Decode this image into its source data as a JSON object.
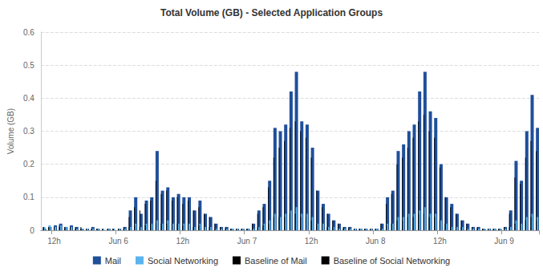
{
  "chart_data": {
    "type": "bar",
    "title": "Total Volume (GB) - Selected Application Groups",
    "y_label": "Volume (GB)",
    "categories": [
      null,
      null,
      "12h",
      null,
      null,
      null,
      null,
      null,
      null,
      null,
      null,
      null,
      null,
      null,
      "Jun 6",
      null,
      null,
      null,
      null,
      null,
      null,
      null,
      null,
      null,
      null,
      null,
      "12h",
      null,
      null,
      null,
      null,
      null,
      null,
      null,
      null,
      null,
      null,
      null,
      "Jun 7",
      null,
      null,
      null,
      null,
      null,
      null,
      null,
      null,
      null,
      null,
      null,
      "12h",
      null,
      null,
      null,
      null,
      null,
      null,
      null,
      null,
      null,
      null,
      null,
      "Jun 8",
      null,
      null,
      null,
      null,
      null,
      null,
      null,
      null,
      null,
      null,
      null,
      "12h",
      null,
      null,
      null,
      null,
      null,
      null,
      null,
      null,
      null,
      null,
      null,
      "Jun 9",
      null,
      null,
      null,
      null,
      null,
      null
    ],
    "series": [
      {
        "name": "Mail",
        "color": "#1f4f9a",
        "values": [
          0.005,
          0.01,
          0.015,
          0.02,
          0.01,
          0.015,
          0.01,
          0.005,
          0.005,
          0.01,
          0.005,
          0.0,
          0.005,
          0.0,
          0.005,
          0.01,
          0.06,
          0.1,
          0.05,
          0.09,
          0.1,
          0.24,
          0.12,
          0.13,
          0.1,
          0.11,
          0.1,
          0.1,
          0.06,
          0.09,
          0.05,
          0.04,
          0.02,
          0.01,
          0.01,
          0.005,
          0.005,
          0.005,
          0.005,
          0.02,
          0.06,
          0.08,
          0.15,
          0.31,
          0.3,
          0.32,
          0.42,
          0.48,
          0.33,
          0.32,
          0.25,
          0.12,
          0.08,
          0.05,
          0.03,
          0.02,
          0.01,
          0.01,
          0.005,
          0.005,
          0.005,
          0.005,
          0.005,
          0.02,
          0.1,
          0.12,
          0.24,
          0.26,
          0.3,
          0.32,
          0.42,
          0.48,
          0.36,
          0.34,
          0.2,
          0.1,
          0.08,
          0.05,
          0.03,
          0.02,
          0.01,
          0.01,
          0.005,
          0.005,
          0.005,
          0.005,
          0.01,
          0.06,
          0.21,
          0.15,
          0.3,
          0.41,
          0.31
        ]
      },
      {
        "name": "Social Networking",
        "color": "#5ab4ee",
        "values": [
          0.01,
          0.015,
          0.01,
          0.015,
          0.01,
          0.01,
          0.005,
          0.005,
          0.005,
          0.005,
          0.005,
          0.005,
          0.005,
          0.005,
          0.005,
          0.005,
          0.01,
          0.02,
          0.01,
          0.02,
          0.02,
          0.03,
          0.02,
          0.03,
          0.02,
          0.02,
          0.02,
          0.02,
          0.01,
          0.02,
          0.01,
          0.01,
          0.005,
          0.005,
          0.005,
          0.005,
          0.005,
          0.005,
          0.005,
          0.005,
          0.01,
          0.02,
          0.03,
          0.05,
          0.04,
          0.05,
          0.06,
          0.07,
          0.05,
          0.05,
          0.04,
          0.02,
          0.02,
          0.01,
          0.01,
          0.005,
          0.005,
          0.005,
          0.005,
          0.005,
          0.005,
          0.005,
          0.005,
          0.005,
          0.02,
          0.02,
          0.04,
          0.04,
          0.05,
          0.05,
          0.06,
          0.07,
          0.05,
          0.05,
          0.03,
          0.02,
          0.01,
          0.01,
          0.01,
          0.005,
          0.005,
          0.005,
          0.005,
          0.005,
          0.005,
          0.005,
          0.005,
          0.01,
          0.03,
          0.02,
          0.04,
          0.05,
          0.04
        ]
      },
      {
        "name": "Baseline of Mail",
        "color": "#000000",
        "values": [
          0.01,
          0.01,
          0.01,
          0.015,
          0.01,
          0.01,
          0.01,
          0.01,
          0.005,
          0.005,
          0.005,
          0.005,
          0.005,
          0.005,
          0.005,
          0.01,
          0.04,
          0.07,
          0.06,
          0.08,
          0.09,
          0.15,
          0.11,
          0.12,
          0.09,
          0.1,
          0.08,
          0.09,
          0.06,
          0.07,
          0.05,
          0.04,
          0.02,
          0.01,
          0.01,
          0.005,
          0.005,
          0.005,
          0.005,
          0.02,
          0.05,
          0.07,
          0.13,
          0.22,
          0.25,
          0.27,
          0.31,
          0.33,
          0.3,
          0.28,
          0.22,
          0.12,
          0.07,
          0.05,
          0.03,
          0.02,
          0.01,
          0.01,
          0.005,
          0.005,
          0.005,
          0.005,
          0.005,
          0.02,
          0.08,
          0.11,
          0.2,
          0.22,
          0.25,
          0.28,
          0.33,
          0.35,
          0.3,
          0.28,
          0.19,
          0.1,
          0.07,
          0.05,
          0.03,
          0.02,
          0.01,
          0.01,
          0.005,
          0.005,
          0.005,
          0.005,
          0.01,
          0.05,
          0.16,
          0.14,
          0.22,
          0.27,
          0.24
        ]
      },
      {
        "name": "Baseline of Social Networking",
        "color": "#000000",
        "values": [
          0.01,
          0.01,
          0.01,
          0.01,
          0.01,
          0.01,
          0.005,
          0.005,
          0.005,
          0.005,
          0.005,
          0.005,
          0.005,
          0.005,
          0.005,
          0.005,
          0.01,
          0.015,
          0.01,
          0.015,
          0.02,
          0.02,
          0.02,
          0.02,
          0.02,
          0.02,
          0.015,
          0.015,
          0.01,
          0.015,
          0.01,
          0.01,
          0.005,
          0.005,
          0.005,
          0.005,
          0.005,
          0.005,
          0.005,
          0.005,
          0.01,
          0.015,
          0.02,
          0.04,
          0.04,
          0.04,
          0.05,
          0.05,
          0.04,
          0.04,
          0.03,
          0.02,
          0.015,
          0.01,
          0.01,
          0.005,
          0.005,
          0.005,
          0.005,
          0.005,
          0.005,
          0.005,
          0.005,
          0.005,
          0.015,
          0.02,
          0.03,
          0.03,
          0.04,
          0.04,
          0.05,
          0.05,
          0.04,
          0.04,
          0.03,
          0.02,
          0.01,
          0.01,
          0.01,
          0.005,
          0.005,
          0.005,
          0.005,
          0.005,
          0.005,
          0.005,
          0.005,
          0.01,
          0.02,
          0.02,
          0.03,
          0.04,
          0.03
        ]
      }
    ],
    "ylim": [
      0,
      0.6
    ],
    "yticks": [
      0,
      0.1,
      0.2,
      0.3,
      0.4,
      0.5,
      0.6
    ],
    "grid": true,
    "legend": "bottom"
  }
}
